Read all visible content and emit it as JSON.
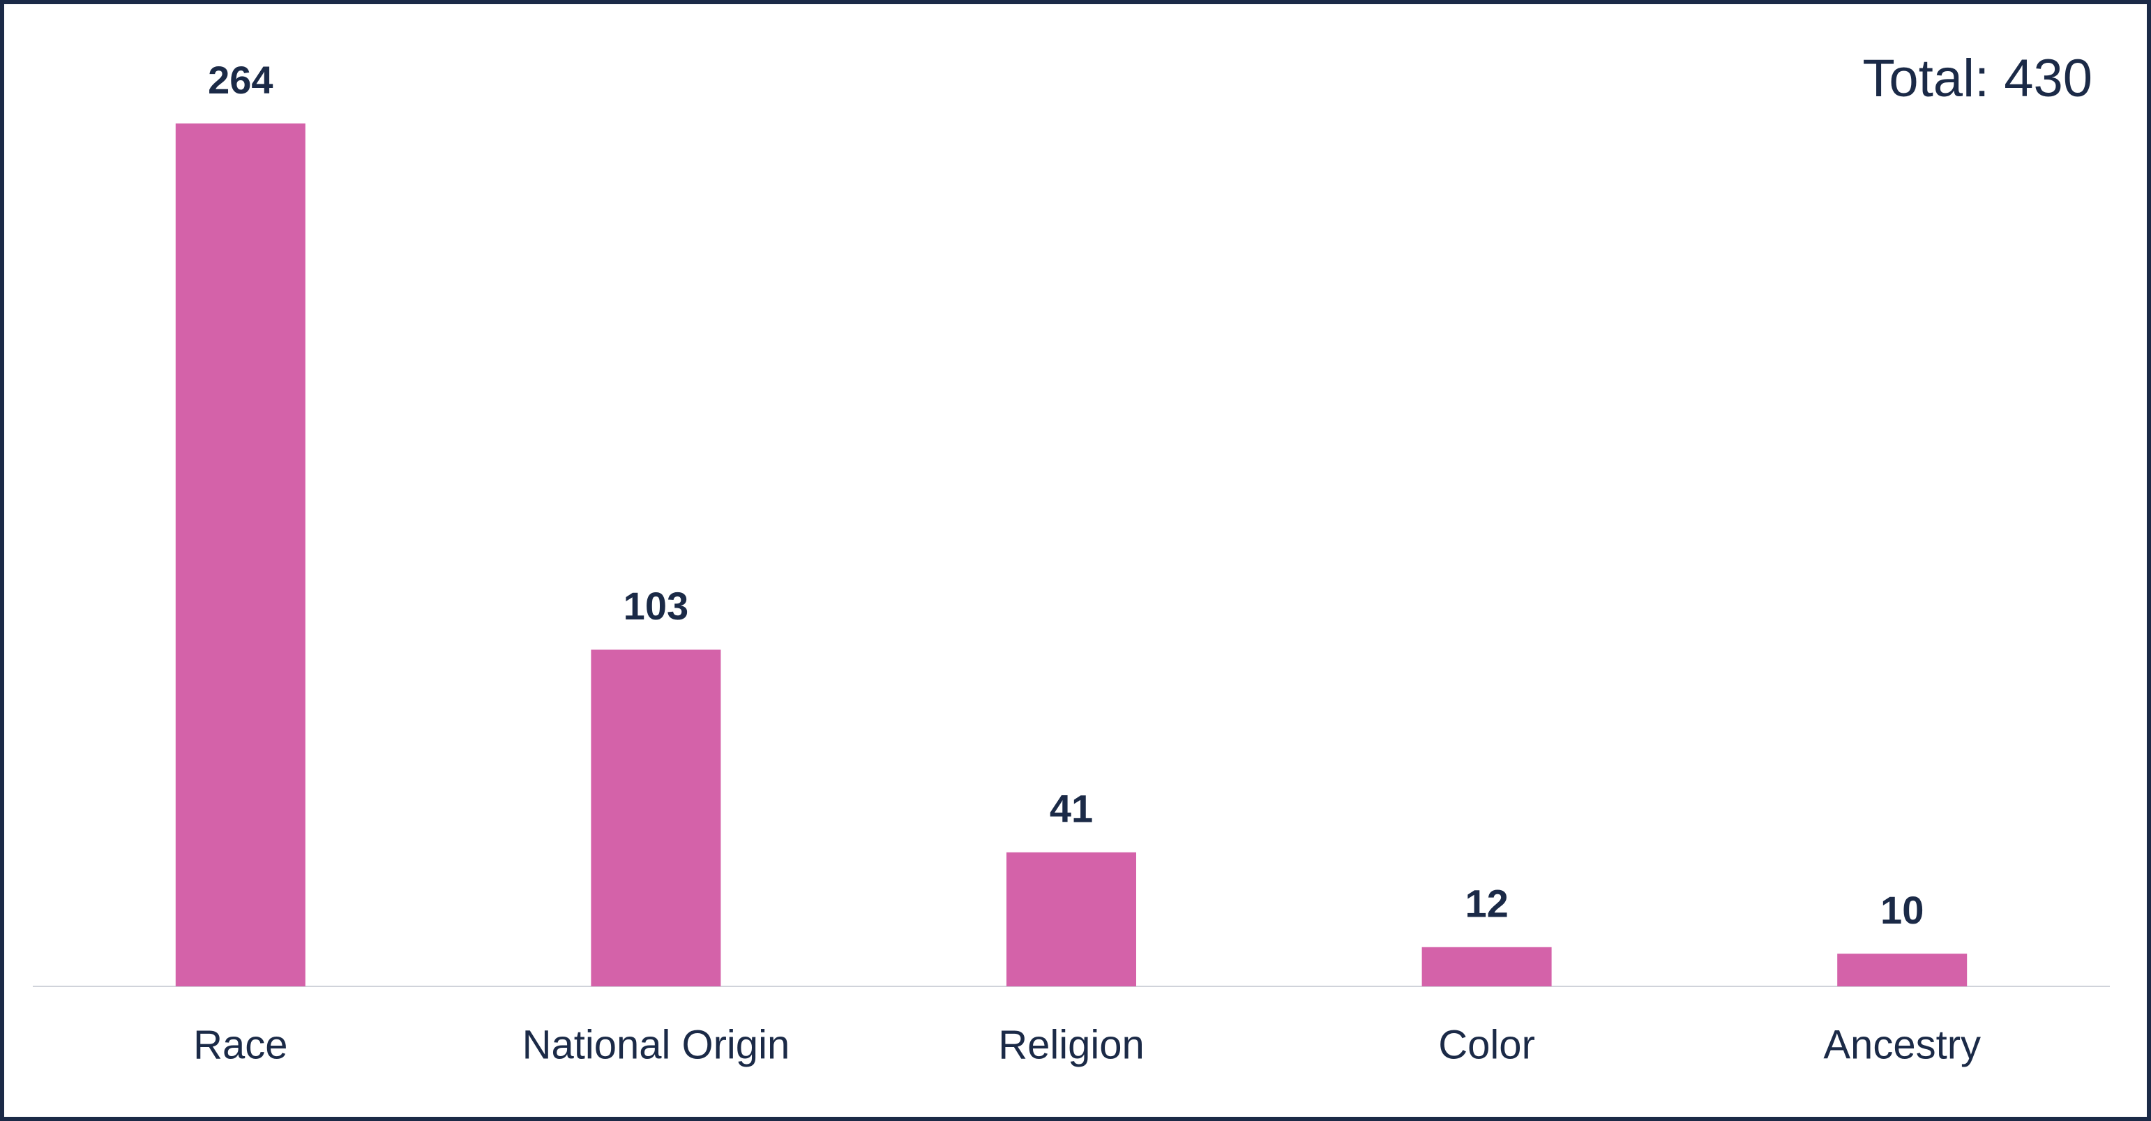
{
  "chart_data": {
    "type": "bar",
    "annotation": "Total: 430",
    "categories": [
      "Race",
      "National Origin",
      "Religion",
      "Color",
      "Ancestry"
    ],
    "values": [
      264,
      103,
      41,
      12,
      10
    ],
    "color": "#d462a9"
  }
}
